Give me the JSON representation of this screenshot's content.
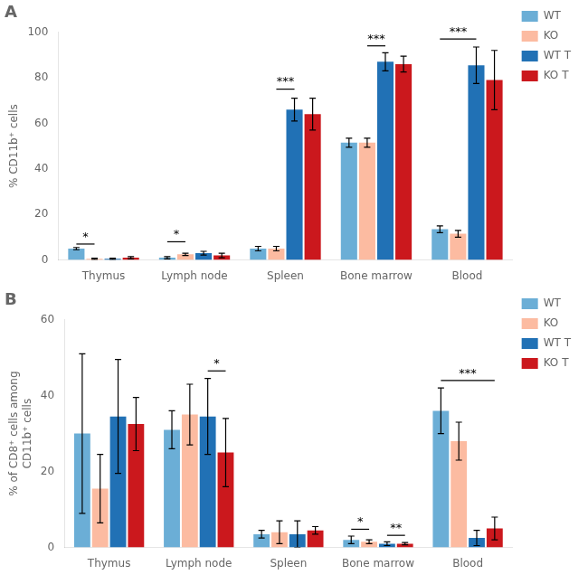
{
  "chart_data": [
    {
      "type": "bar",
      "title": "A",
      "ylabel": "% CD11b⁺ cells",
      "categories": [
        "Thymus",
        "Lymph node",
        "Spleen",
        "Bone marrow",
        "Blood"
      ],
      "series": [
        {
          "name": "WT",
          "color": "#6baed6",
          "values": [
            5.0,
            1.0,
            5.0,
            51.5,
            13.5
          ],
          "errors": [
            0.5,
            0.5,
            1.0,
            2.0,
            1.5
          ]
        },
        {
          "name": "KO",
          "color": "#fcbba1",
          "values": [
            0.5,
            2.5,
            5.0,
            51.5,
            11.5
          ],
          "errors": [
            0.3,
            0.5,
            1.0,
            2.0,
            1.5
          ]
        },
        {
          "name": "WT T",
          "color": "#2171b5",
          "values": [
            0.5,
            3.0,
            66.0,
            87.0,
            85.5
          ],
          "errors": [
            0.3,
            0.8,
            5.0,
            4.0,
            8.0
          ]
        },
        {
          "name": "KO T",
          "color": "#cb181d",
          "values": [
            1.0,
            2.0,
            64.0,
            86.0,
            79.0
          ],
          "errors": [
            0.5,
            1.0,
            7.0,
            3.5,
            13.0
          ]
        }
      ],
      "ylim": [
        0,
        100
      ],
      "yticks": [
        0,
        20,
        40,
        60,
        80,
        100
      ],
      "grid": false,
      "legend": "right",
      "annotations": [
        {
          "text": "*",
          "category": "Thymus",
          "from": "WT",
          "to": "KO",
          "y": 7.0
        },
        {
          "text": "*",
          "category": "Lymph node",
          "from": "WT",
          "to": "KO",
          "y": 8.0
        },
        {
          "text": "***",
          "category": "Spleen",
          "from": "KO",
          "to": "WT T",
          "y": 75.0
        },
        {
          "text": "***",
          "category": "Bone marrow",
          "from": "KO",
          "to": "WT T",
          "y": 94.0
        },
        {
          "text": "***",
          "category": "Blood",
          "from": "WT",
          "to": "WT T",
          "y": 97.0
        }
      ]
    },
    {
      "type": "bar",
      "title": "B",
      "ylabel": "% of CD8⁺ cells among\nCD11b⁺ cells",
      "categories": [
        "Thymus",
        "Lymph node",
        "Spleen",
        "Bone marrow",
        "Blood"
      ],
      "series": [
        {
          "name": "WT",
          "color": "#6baed6",
          "values": [
            30.0,
            31.0,
            3.5,
            2.0,
            36.0
          ],
          "errors": [
            21.0,
            5.0,
            1.0,
            1.0,
            6.0
          ]
        },
        {
          "name": "KO",
          "color": "#fcbba1",
          "values": [
            15.5,
            35.0,
            4.0,
            1.5,
            28.0
          ],
          "errors": [
            9.0,
            8.0,
            3.0,
            0.5,
            5.0
          ]
        },
        {
          "name": "WT T",
          "color": "#2171b5",
          "values": [
            34.5,
            34.5,
            3.5,
            1.0,
            2.5
          ],
          "errors": [
            15.0,
            10.0,
            3.5,
            0.5,
            2.0
          ]
        },
        {
          "name": "KO T",
          "color": "#cb181d",
          "values": [
            32.5,
            25.0,
            4.5,
            1.0,
            5.0
          ],
          "errors": [
            7.0,
            9.0,
            1.0,
            0.3,
            3.0
          ]
        }
      ],
      "ylim": [
        0,
        60
      ],
      "yticks": [
        0,
        20,
        40,
        60
      ],
      "grid": false,
      "legend": "right",
      "annotations": [
        {
          "text": "*",
          "category": "Lymph node",
          "from": "WT T",
          "to": "KO T",
          "y": 46.5
        },
        {
          "text": "*",
          "category": "Bone marrow",
          "from": "WT",
          "to": "KO",
          "y": 4.8
        },
        {
          "text": "**",
          "category": "Bone marrow",
          "from": "WT T",
          "to": "KO T",
          "y": 3.2
        },
        {
          "text": "***",
          "category": "Blood",
          "from": "WT",
          "to": "KO T",
          "y": 44.0
        }
      ]
    }
  ]
}
